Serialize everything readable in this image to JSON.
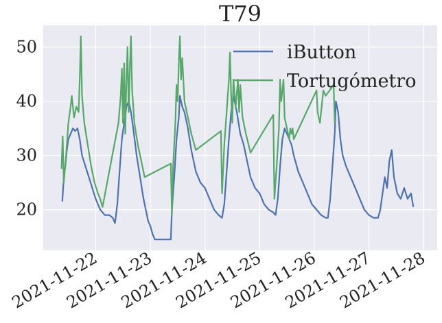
{
  "chart_data": {
    "type": "line",
    "title": "T79",
    "xlabel": "",
    "ylabel": "",
    "x_ticks": [
      "2021-11-22",
      "2021-11-23",
      "2021-11-24",
      "2021-11-25",
      "2021-11-26",
      "2021-11-27",
      "2021-11-28"
    ],
    "y_ticks": [
      20,
      30,
      40,
      50
    ],
    "xlim": [
      "2021-11-21 00:58",
      "2021-11-28 06:00"
    ],
    "ylim": [
      12.5,
      54
    ],
    "grid": true,
    "legend_position": "top-right",
    "colors": {
      "background": "#EAEAF2",
      "grid": "#FFFFFF",
      "ibutton": "#4C72B0",
      "tortugometro": "#55A868"
    },
    "series": [
      {
        "name": "iButton",
        "color": "#4C72B0",
        "points": [
          [
            "2021-11-21 09:20",
            21.5
          ],
          [
            "2021-11-21 10:00",
            26
          ],
          [
            "2021-11-21 10:40",
            28
          ],
          [
            "2021-11-21 11:20",
            31
          ],
          [
            "2021-11-21 12:00",
            33
          ],
          [
            "2021-11-21 13:00",
            34
          ],
          [
            "2021-11-21 14:00",
            35
          ],
          [
            "2021-11-21 15:00",
            34.5
          ],
          [
            "2021-11-21 16:00",
            35
          ],
          [
            "2021-11-21 17:00",
            33
          ],
          [
            "2021-11-21 18:00",
            30
          ],
          [
            "2021-11-21 19:30",
            28
          ],
          [
            "2021-11-21 21:00",
            26
          ],
          [
            "2021-11-21 22:30",
            24
          ],
          [
            "2021-11-22 00:00",
            22
          ],
          [
            "2021-11-22 02:00",
            20
          ],
          [
            "2021-11-22 04:00",
            19
          ],
          [
            "2021-11-22 06:00",
            19
          ],
          [
            "2021-11-22 07:30",
            18.5
          ],
          [
            "2021-11-22 08:30",
            17.5
          ],
          [
            "2021-11-22 09:30",
            21
          ],
          [
            "2021-11-22 10:30",
            27
          ],
          [
            "2021-11-22 11:30",
            33
          ],
          [
            "2021-11-22 12:30",
            36
          ],
          [
            "2021-11-22 13:30",
            39
          ],
          [
            "2021-11-22 14:30",
            40
          ],
          [
            "2021-11-22 15:30",
            38
          ],
          [
            "2021-11-22 16:30",
            35
          ],
          [
            "2021-11-22 18:00",
            30
          ],
          [
            "2021-11-22 19:30",
            26
          ],
          [
            "2021-11-22 21:00",
            22
          ],
          [
            "2021-11-22 22:00",
            20
          ],
          [
            "2021-11-22 23:00",
            18
          ],
          [
            "2021-11-23 00:00",
            17
          ],
          [
            "2021-11-23 01:00",
            15.5
          ],
          [
            "2021-11-23 02:00",
            14.5
          ],
          [
            "2021-11-23 05:00",
            14.5
          ],
          [
            "2021-11-23 08:00",
            14.5
          ],
          [
            "2021-11-23 09:00",
            14.5
          ],
          [
            "2021-11-23 09:30",
            20
          ],
          [
            "2021-11-23 10:30",
            26
          ],
          [
            "2021-11-23 11:30",
            33
          ],
          [
            "2021-11-23 12:30",
            37
          ],
          [
            "2021-11-23 13:00",
            41
          ],
          [
            "2021-11-23 14:00",
            39
          ],
          [
            "2021-11-23 15:00",
            38
          ],
          [
            "2021-11-23 16:30",
            35
          ],
          [
            "2021-11-23 18:00",
            31
          ],
          [
            "2021-11-23 20:00",
            27
          ],
          [
            "2021-11-23 22:00",
            25
          ],
          [
            "2021-11-24 00:00",
            24
          ],
          [
            "2021-11-24 02:00",
            22
          ],
          [
            "2021-11-24 04:00",
            20
          ],
          [
            "2021-11-24 06:00",
            19
          ],
          [
            "2021-11-24 07:30",
            18.5
          ],
          [
            "2021-11-24 08:30",
            21
          ],
          [
            "2021-11-24 09:30",
            27
          ],
          [
            "2021-11-24 10:30",
            33
          ],
          [
            "2021-11-24 11:30",
            38
          ],
          [
            "2021-11-24 12:30",
            41
          ],
          [
            "2021-11-24 14:00",
            38
          ],
          [
            "2021-11-24 15:30",
            34
          ],
          [
            "2021-11-24 17:00",
            32
          ],
          [
            "2021-11-24 18:30",
            29
          ],
          [
            "2021-11-24 20:00",
            26
          ],
          [
            "2021-11-24 22:00",
            24
          ],
          [
            "2021-11-25 00:00",
            23
          ],
          [
            "2021-11-25 02:00",
            21
          ],
          [
            "2021-11-25 04:00",
            20
          ],
          [
            "2021-11-25 06:00",
            19.5
          ],
          [
            "2021-11-25 07:00",
            19
          ],
          [
            "2021-11-25 08:00",
            22
          ],
          [
            "2021-11-25 09:00",
            28
          ],
          [
            "2021-11-25 10:00",
            33
          ],
          [
            "2021-11-25 11:00",
            35
          ],
          [
            "2021-11-25 12:00",
            34
          ],
          [
            "2021-11-25 13:00",
            33
          ],
          [
            "2021-11-25 14:00",
            32
          ],
          [
            "2021-11-25 15:00",
            30
          ],
          [
            "2021-11-25 17:00",
            27
          ],
          [
            "2021-11-25 19:00",
            25
          ],
          [
            "2021-11-25 21:00",
            23
          ],
          [
            "2021-11-25 23:00",
            21
          ],
          [
            "2021-11-26 01:00",
            20
          ],
          [
            "2021-11-26 03:00",
            19
          ],
          [
            "2021-11-26 05:00",
            18.5
          ],
          [
            "2021-11-26 06:00",
            18.5
          ],
          [
            "2021-11-26 07:00",
            22
          ],
          [
            "2021-11-26 08:00",
            28
          ],
          [
            "2021-11-26 09:00",
            34
          ],
          [
            "2021-11-26 09:30",
            40
          ],
          [
            "2021-11-26 10:30",
            38
          ],
          [
            "2021-11-26 11:30",
            33
          ],
          [
            "2021-11-26 12:30",
            30
          ],
          [
            "2021-11-26 14:00",
            28
          ],
          [
            "2021-11-26 16:00",
            26
          ],
          [
            "2021-11-26 18:00",
            24
          ],
          [
            "2021-11-26 20:00",
            22
          ],
          [
            "2021-11-26 22:00",
            20
          ],
          [
            "2021-11-27 00:00",
            19
          ],
          [
            "2021-11-27 02:00",
            18.5
          ],
          [
            "2021-11-27 04:00",
            18.5
          ],
          [
            "2021-11-27 05:00",
            20
          ],
          [
            "2021-11-27 06:00",
            23
          ],
          [
            "2021-11-27 07:00",
            26
          ],
          [
            "2021-11-27 08:00",
            24
          ],
          [
            "2021-11-27 09:00",
            29
          ],
          [
            "2021-11-27 10:00",
            31
          ],
          [
            "2021-11-27 11:00",
            26
          ],
          [
            "2021-11-27 12:30",
            23
          ],
          [
            "2021-11-27 14:00",
            22
          ],
          [
            "2021-11-27 15:30",
            24
          ],
          [
            "2021-11-27 17:00",
            22
          ],
          [
            "2021-11-27 18:30",
            23
          ],
          [
            "2021-11-27 19:30",
            20.5
          ]
        ]
      },
      {
        "name": "Tortugómetro",
        "color": "#55A868",
        "points": [
          [
            "2021-11-21 09:00",
            27.5
          ],
          [
            "2021-11-21 09:30",
            33.5
          ],
          [
            "2021-11-21 10:00",
            25
          ],
          [
            "2021-11-21 11:00",
            30
          ],
          [
            "2021-11-21 12:00",
            36
          ],
          [
            "2021-11-21 13:00",
            39
          ],
          [
            "2021-11-21 13:30",
            41
          ],
          [
            "2021-11-21 14:30",
            37
          ],
          [
            "2021-11-21 15:30",
            39
          ],
          [
            "2021-11-21 16:30",
            38
          ],
          [
            "2021-11-21 17:00",
            44
          ],
          [
            "2021-11-21 17:30",
            52
          ],
          [
            "2021-11-21 18:00",
            41
          ],
          [
            "2021-11-21 19:00",
            36
          ],
          [
            "2021-11-21 20:30",
            32
          ],
          [
            "2021-11-21 22:00",
            28
          ],
          [
            "2021-11-21 23:30",
            25
          ],
          [
            "2021-11-22 01:00",
            23
          ],
          [
            "2021-11-22 02:00",
            22
          ],
          [
            "2021-11-22 03:00",
            20.5
          ],
          [
            "2021-11-22 10:00",
            36
          ],
          [
            "2021-11-22 11:00",
            41
          ],
          [
            "2021-11-22 11:30",
            46
          ],
          [
            "2021-11-22 12:00",
            36
          ],
          [
            "2021-11-22 12:30",
            47
          ],
          [
            "2021-11-22 13:00",
            34
          ],
          [
            "2021-11-22 13:30",
            44
          ],
          [
            "2021-11-22 14:00",
            50
          ],
          [
            "2021-11-22 14:30",
            38
          ],
          [
            "2021-11-22 15:00",
            46
          ],
          [
            "2021-11-22 15:30",
            52
          ],
          [
            "2021-11-22 16:00",
            42
          ],
          [
            "2021-11-22 17:00",
            36
          ],
          [
            "2021-11-22 18:30",
            32
          ],
          [
            "2021-11-22 20:00",
            29
          ],
          [
            "2021-11-22 21:30",
            26
          ],
          [
            "2021-11-23 09:00",
            28.5
          ],
          [
            "2021-11-23 09:30",
            19
          ],
          [
            "2021-11-23 10:00",
            28
          ],
          [
            "2021-11-23 11:00",
            36
          ],
          [
            "2021-11-23 11:30",
            43
          ],
          [
            "2021-11-23 12:00",
            40
          ],
          [
            "2021-11-23 12:30",
            47
          ],
          [
            "2021-11-23 13:00",
            52
          ],
          [
            "2021-11-23 13:30",
            44
          ],
          [
            "2021-11-23 14:00",
            48
          ],
          [
            "2021-11-23 15:00",
            40
          ],
          [
            "2021-11-23 16:30",
            37
          ],
          [
            "2021-11-23 18:00",
            34
          ],
          [
            "2021-11-23 20:00",
            31
          ],
          [
            "2021-11-24 07:00",
            34.5
          ],
          [
            "2021-11-24 07:30",
            23
          ],
          [
            "2021-11-24 08:30",
            32
          ],
          [
            "2021-11-24 09:30",
            38
          ],
          [
            "2021-11-24 10:30",
            44
          ],
          [
            "2021-11-24 11:00",
            49
          ],
          [
            "2021-11-24 11:30",
            41
          ],
          [
            "2021-11-24 12:00",
            36
          ],
          [
            "2021-11-24 12:30",
            44
          ],
          [
            "2021-11-24 13:30",
            39
          ],
          [
            "2021-11-24 14:30",
            44
          ],
          [
            "2021-11-24 15:00",
            38
          ],
          [
            "2021-11-24 15:30",
            43
          ],
          [
            "2021-11-24 16:30",
            37
          ],
          [
            "2021-11-24 18:00",
            34
          ],
          [
            "2021-11-24 20:00",
            30.5
          ],
          [
            "2021-11-25 06:00",
            37.5
          ],
          [
            "2021-11-25 06:30",
            22
          ],
          [
            "2021-11-25 07:30",
            28
          ],
          [
            "2021-11-25 08:30",
            35
          ],
          [
            "2021-11-25 09:00",
            44
          ],
          [
            "2021-11-25 09:30",
            40
          ],
          [
            "2021-11-25 10:30",
            44
          ],
          [
            "2021-11-25 11:00",
            37
          ],
          [
            "2021-11-25 12:00",
            35
          ],
          [
            "2021-11-25 13:00",
            33
          ],
          [
            "2021-11-25 13:30",
            35
          ],
          [
            "2021-11-25 14:00",
            34
          ],
          [
            "2021-11-25 14:30",
            35
          ],
          [
            "2021-11-25 15:00",
            33
          ],
          [
            "2021-11-26 01:00",
            42
          ],
          [
            "2021-11-26 01:30",
            38
          ],
          [
            "2021-11-26 02:30",
            36
          ],
          [
            "2021-11-26 04:00",
            42
          ],
          [
            "2021-11-26 05:00",
            41
          ],
          [
            "2021-11-26 08:30",
            43
          ],
          [
            "2021-11-26 09:00",
            36
          ]
        ]
      }
    ]
  }
}
